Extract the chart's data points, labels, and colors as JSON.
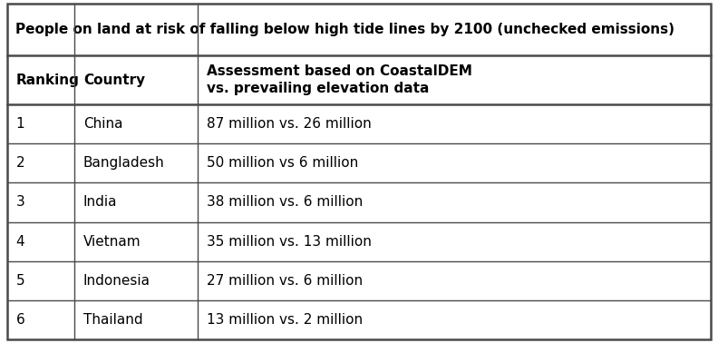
{
  "title": "People on land at risk of falling below high tide lines by 2100 (unchecked emissions)",
  "col_headers": [
    "Ranking",
    "Country",
    "Assessment based on CoastalDEM\nvs. prevailing elevation data"
  ],
  "rows": [
    [
      "1",
      "China",
      "87 million vs. 26 million"
    ],
    [
      "2",
      "Bangladesh",
      "50 million vs 6 million"
    ],
    [
      "3",
      "India",
      "38 million vs. 6 million"
    ],
    [
      "4",
      "Vietnam",
      "35 million vs. 13 million"
    ],
    [
      "5",
      "Indonesia",
      "27 million vs. 6 million"
    ],
    [
      "6",
      "Thailand",
      "13 million vs. 2 million"
    ]
  ],
  "background_color": "#ffffff",
  "border_color": "#4a4a4a",
  "title_fontsize": 11.0,
  "header_fontsize": 11.0,
  "cell_fontsize": 11.0,
  "fig_width": 7.92,
  "fig_height": 3.78
}
